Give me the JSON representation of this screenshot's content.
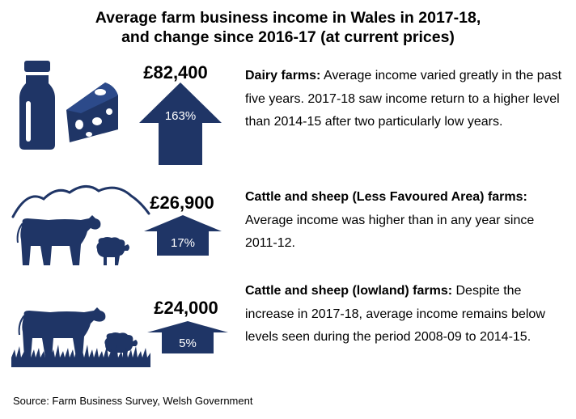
{
  "title": {
    "line1": "Average farm business income in Wales in 2017-18,",
    "line2": "and change since 2016-17 (at current prices)"
  },
  "colors": {
    "navy": "#1f3566"
  },
  "rows": [
    {
      "value": "£82,400",
      "change": "163%",
      "change_fraction": 1.63,
      "heading": "Dairy farms:",
      "text": " Average income varied greatly in the past five years. 2017-18 saw income return to a higher level than 2014-15 after two particularly low years.",
      "icons": [
        "milk-bottle-icon",
        "cheese-icon"
      ]
    },
    {
      "value": "£26,900",
      "change": "17%",
      "change_fraction": 0.17,
      "heading": "Cattle and sheep (Less Favoured Area) farms:",
      "text": " Average income was higher than in any year since 2011-12.",
      "icons": [
        "mountains-icon",
        "cow-icon",
        "sheep-icon"
      ]
    },
    {
      "value": "£24,000",
      "change": "5%",
      "change_fraction": 0.05,
      "heading": "Cattle and sheep (lowland) farms:",
      "text": " Despite the increase in 2017-18, average income remains below levels seen during the period 2008-09 to 2014-15.",
      "icons": [
        "cow-icon",
        "sheep-icon",
        "grass-icon"
      ]
    }
  ],
  "source": "Source: Farm Business Survey, Welsh Government"
}
